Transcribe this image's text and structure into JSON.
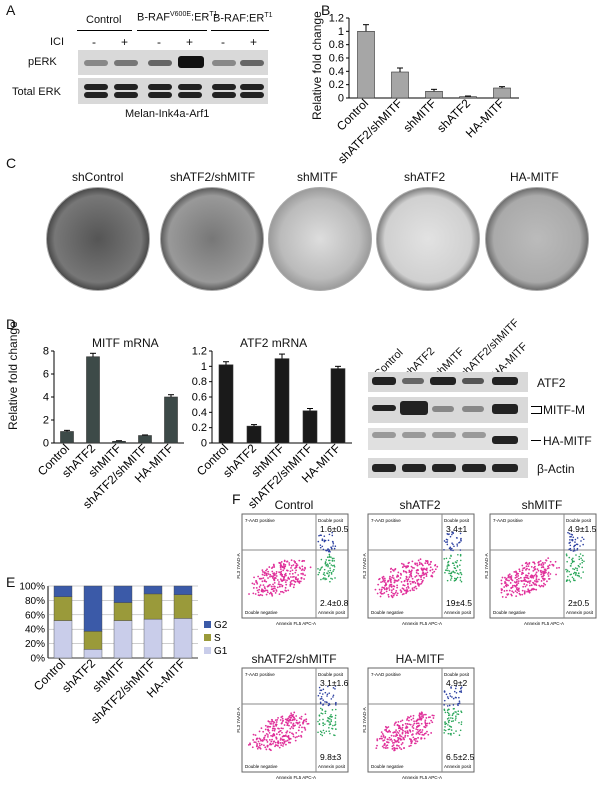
{
  "panelA": {
    "letter": "A",
    "groups": [
      "Control",
      "B-RAF",
      "V600E",
      ":ER",
      "T1",
      "B-RAF:ER",
      "T1"
    ],
    "ici_label": "ICI",
    "lane_signs": [
      "-",
      "+",
      "-",
      "+",
      "-",
      "+"
    ],
    "rows": [
      "pERK",
      "Total ERK"
    ],
    "caption": "Melan-Ink4a-Arf1"
  },
  "panelB": {
    "letter": "B",
    "ylabel": "Relative fold change",
    "yticks": [
      "0",
      "0.2",
      "0.4",
      "0.6",
      "0.8",
      "1",
      "1.2"
    ],
    "categories": [
      "Control",
      "shATF2/shMITF",
      "shMITF",
      "shATF2",
      "HA-MITF"
    ]
  },
  "panelC": {
    "letter": "C",
    "labels": [
      "shControl",
      "shATF2/shMITF",
      "shMITF",
      "shATF2",
      "HA-MITF"
    ]
  },
  "panelD": {
    "letter": "D",
    "ylabel": "Relative fold change",
    "mitf_title": "MITF mRNA",
    "mitf_yticks": [
      "0",
      "2",
      "4",
      "6",
      "8"
    ],
    "atf2_title": "ATF2 mRNA",
    "atf2_yticks": [
      "0",
      "0.2",
      "0.4",
      "0.6",
      "0.8",
      "1",
      "1.2"
    ],
    "categories": [
      "Control",
      "shATF2",
      "shMITF",
      "shATF2/shMITF",
      "HA-MITF"
    ],
    "blot_rows": [
      "ATF2",
      "MITF-M",
      "HA-MITF",
      "β-Actin"
    ]
  },
  "panelE": {
    "letter": "E",
    "yticks": [
      "0%",
      "20%",
      "40%",
      "60%",
      "80%",
      "100%"
    ],
    "legend": [
      "G2",
      "S",
      "G1"
    ],
    "categories": [
      "Control",
      "shATF2",
      "shMITF",
      "shATF2/shMITF",
      "HA-MITF"
    ]
  },
  "panelF": {
    "letter": "F",
    "plots": [
      {
        "title": "Control",
        "upper": "1.6±0.5",
        "lower": "2.4±0.8"
      },
      {
        "title": "shATF2",
        "upper": "3.4±1",
        "lower": "19±4.5"
      },
      {
        "title": "shMITF",
        "upper": "4.9±1.5",
        "lower": "2±0.5"
      },
      {
        "title": "shATF2/shMITF",
        "upper": "3.1±1.6",
        "lower": "9.8±3"
      },
      {
        "title": "HA-MITF",
        "upper": "4.9±2",
        "lower": "6.5±2.5"
      }
    ],
    "quad_labels": [
      "7-AAD positive",
      "Double posit",
      "Double negative",
      "Annexin posit"
    ],
    "xaxis": "Annexin FL5 APC-A",
    "yaxis": "FL3 7AAD-A"
  },
  "chart_data": [
    {
      "type": "bar",
      "title": "",
      "ylabel": "Relative fold change",
      "categories": [
        "Control",
        "shATF2/shMITF",
        "shMITF",
        "shATF2",
        "HA-MITF"
      ],
      "values": [
        1.0,
        0.39,
        0.1,
        0.02,
        0.15
      ],
      "errors": [
        0.1,
        0.06,
        0.03,
        0.01,
        0.02
      ],
      "ylim": [
        0,
        1.2
      ],
      "color": "#a6a6a6"
    },
    {
      "type": "bar",
      "title": "MITF mRNA",
      "ylabel": "Relative fold change",
      "categories": [
        "Control",
        "shATF2",
        "shMITF",
        "shATF2/shMITF",
        "HA-MITF"
      ],
      "values": [
        1.0,
        7.5,
        0.15,
        0.65,
        4.0
      ],
      "errors": [
        0.1,
        0.3,
        0.05,
        0.05,
        0.2
      ],
      "ylim": [
        0,
        8
      ],
      "color": "#3d4a48"
    },
    {
      "type": "bar",
      "title": "ATF2 mRNA",
      "categories": [
        "Control",
        "shATF2",
        "shMITF",
        "shATF2/shMITF",
        "HA-MITF"
      ],
      "values": [
        1.02,
        0.22,
        1.1,
        0.42,
        0.97
      ],
      "errors": [
        0.04,
        0.02,
        0.06,
        0.03,
        0.03
      ],
      "ylim": [
        0,
        1.2
      ],
      "color": "#1a1a1a"
    },
    {
      "type": "bar",
      "stacked": true,
      "categories": [
        "Control",
        "shATF2",
        "shMITF",
        "shATF2/shMITF",
        "HA-MITF"
      ],
      "series": [
        {
          "name": "G1",
          "values": [
            52,
            12,
            52,
            54,
            55
          ],
          "color": "#c9cdea"
        },
        {
          "name": "S",
          "values": [
            33,
            25,
            25,
            35,
            33
          ],
          "color": "#9a9a3a"
        },
        {
          "name": "G2",
          "values": [
            15,
            63,
            23,
            11,
            12
          ],
          "color": "#3b5aa8"
        }
      ],
      "ylim": [
        0,
        100
      ],
      "yticks": [
        "0%",
        "20%",
        "40%",
        "60%",
        "80%",
        "100%"
      ]
    }
  ]
}
